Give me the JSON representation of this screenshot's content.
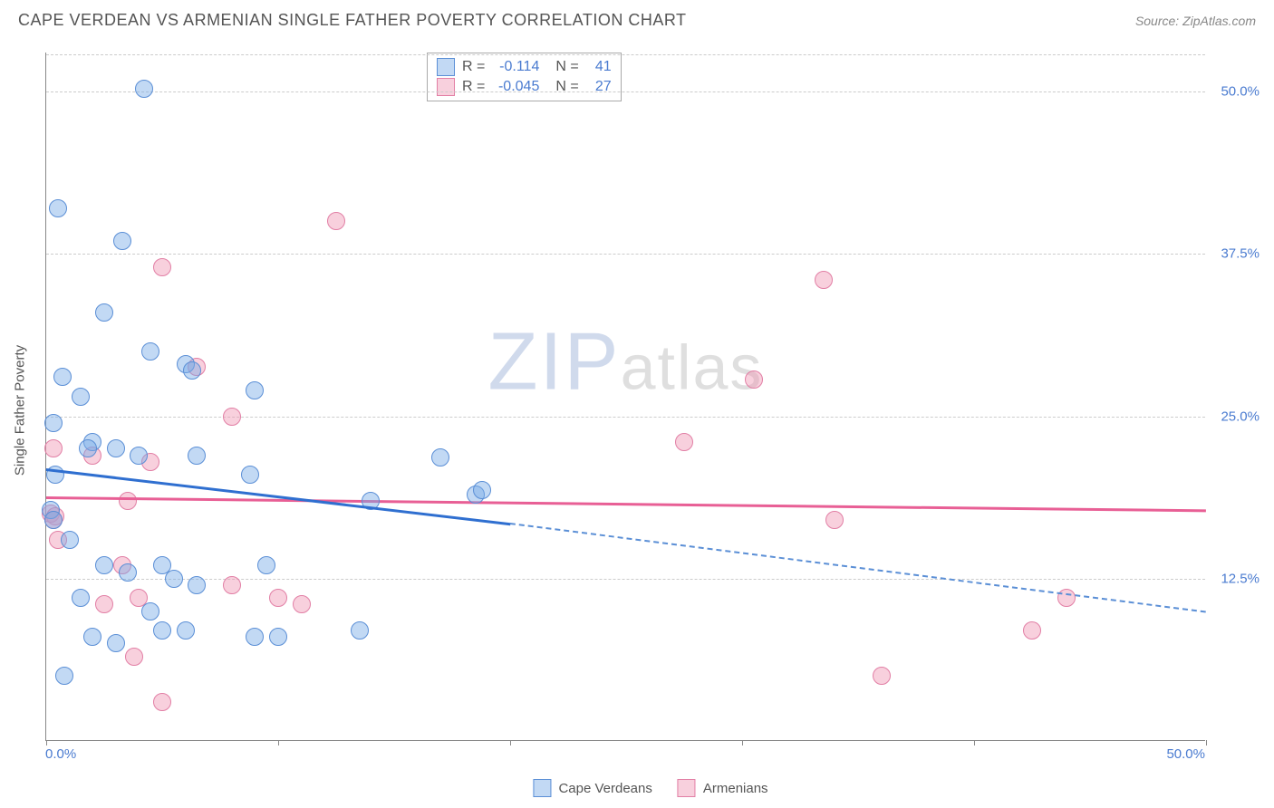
{
  "title": "CAPE VERDEAN VS ARMENIAN SINGLE FATHER POVERTY CORRELATION CHART",
  "source": "Source: ZipAtlas.com",
  "yaxis_title": "Single Father Poverty",
  "watermark_bold": "ZIP",
  "watermark_light": "atlas",
  "chart": {
    "type": "scatter",
    "xlim": [
      0,
      50
    ],
    "ylim": [
      0,
      53
    ],
    "xtick_positions": [
      0,
      10,
      20,
      30,
      40,
      50
    ],
    "ytick_positions": [
      12.5,
      25.0,
      37.5,
      50.0
    ],
    "ytick_labels": [
      "12.5%",
      "25.0%",
      "37.5%",
      "50.0%"
    ],
    "xaxis_min_label": "0.0%",
    "xaxis_max_label": "50.0%",
    "grid_color": "#cccccc",
    "axis_color": "#888888",
    "background_color": "#ffffff"
  },
  "series": {
    "capeverdeans": {
      "label": "Cape Verdeans",
      "fill": "rgba(120,170,230,0.45)",
      "stroke": "#5b8fd6",
      "line_color": "#2f6fd0",
      "marker_radius": 10,
      "R": "-0.114",
      "N": "41",
      "trend": {
        "x1": 0,
        "y1": 21.0,
        "x2_solid": 20,
        "y2_solid": 16.8,
        "x2": 50,
        "y2": 10.0
      },
      "points": [
        [
          0.5,
          41.0
        ],
        [
          4.2,
          50.2
        ],
        [
          0.3,
          24.5
        ],
        [
          2.5,
          33.0
        ],
        [
          3.3,
          38.5
        ],
        [
          0.7,
          28.0
        ],
        [
          1.5,
          26.5
        ],
        [
          2.0,
          23.0
        ],
        [
          1.8,
          22.5
        ],
        [
          0.4,
          20.5
        ],
        [
          4.5,
          30.0
        ],
        [
          6.0,
          29.0
        ],
        [
          6.3,
          28.5
        ],
        [
          9.0,
          27.0
        ],
        [
          3.0,
          22.5
        ],
        [
          4.0,
          22.0
        ],
        [
          6.5,
          22.0
        ],
        [
          8.8,
          20.5
        ],
        [
          17.0,
          21.8
        ],
        [
          18.5,
          19.0
        ],
        [
          18.8,
          19.3
        ],
        [
          14.0,
          18.5
        ],
        [
          0.2,
          17.8
        ],
        [
          0.3,
          17.0
        ],
        [
          1.0,
          15.5
        ],
        [
          2.5,
          13.5
        ],
        [
          3.5,
          13.0
        ],
        [
          5.0,
          13.5
        ],
        [
          6.5,
          12.0
        ],
        [
          9.5,
          13.5
        ],
        [
          1.5,
          11.0
        ],
        [
          4.5,
          10.0
        ],
        [
          5.0,
          8.5
        ],
        [
          6.0,
          8.5
        ],
        [
          2.0,
          8.0
        ],
        [
          3.0,
          7.5
        ],
        [
          9.0,
          8.0
        ],
        [
          10.0,
          8.0
        ],
        [
          13.5,
          8.5
        ],
        [
          5.5,
          12.5
        ],
        [
          0.8,
          5.0
        ]
      ]
    },
    "armenians": {
      "label": "Armenians",
      "fill": "rgba(240,150,180,0.45)",
      "stroke": "#e27fa5",
      "line_color": "#e85f95",
      "marker_radius": 10,
      "R": "-0.045",
      "N": "27",
      "trend": {
        "x1": 0,
        "y1": 18.8,
        "x2_solid": 50,
        "y2_solid": 17.8,
        "x2": 50,
        "y2": 17.8
      },
      "points": [
        [
          12.5,
          40.0
        ],
        [
          5.0,
          36.5
        ],
        [
          6.5,
          28.8
        ],
        [
          8.0,
          25.0
        ],
        [
          0.3,
          22.5
        ],
        [
          2.0,
          22.0
        ],
        [
          4.5,
          21.5
        ],
        [
          0.2,
          17.5
        ],
        [
          0.4,
          17.3
        ],
        [
          3.5,
          18.5
        ],
        [
          0.5,
          15.5
        ],
        [
          3.3,
          13.5
        ],
        [
          4.0,
          11.0
        ],
        [
          2.5,
          10.5
        ],
        [
          8.0,
          12.0
        ],
        [
          10.0,
          11.0
        ],
        [
          11.0,
          10.5
        ],
        [
          3.8,
          6.5
        ],
        [
          5.0,
          3.0
        ],
        [
          33.5,
          35.5
        ],
        [
          30.5,
          27.8
        ],
        [
          27.5,
          23.0
        ],
        [
          34.0,
          17.0
        ],
        [
          44.0,
          11.0
        ],
        [
          42.5,
          8.5
        ],
        [
          36.0,
          5.0
        ],
        [
          0.3,
          17.0
        ]
      ]
    }
  },
  "legend_top": [
    {
      "series": "capeverdeans"
    },
    {
      "series": "armenians"
    }
  ],
  "legend_bottom": [
    {
      "series": "capeverdeans"
    },
    {
      "series": "armenians"
    }
  ]
}
